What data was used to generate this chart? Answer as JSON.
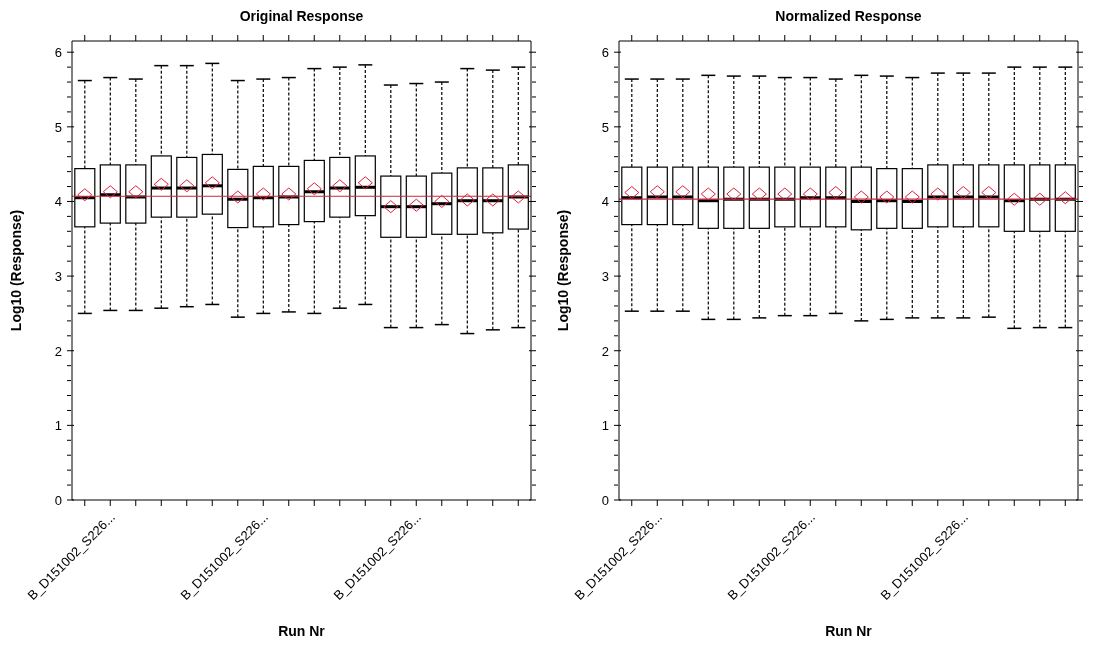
{
  "chart_data": [
    {
      "type": "box",
      "title": "Original Response",
      "xlabel": "Run Nr",
      "ylabel": "Log10 (Response)",
      "categories": [
        null,
        "B_D151002_S226...",
        null,
        null,
        null,
        null,
        null,
        "B_D151002_S226...",
        null,
        null,
        null,
        null,
        null,
        "B_D151002_S226...",
        null,
        null,
        null,
        null
      ],
      "ylim": [
        0,
        6.15
      ],
      "yticks": [
        0,
        {
          "value": 0.2,
          "label": null
        },
        {
          "value": 0.4,
          "label": null
        },
        {
          "value": 0.6,
          "label": null
        },
        {
          "value": 0.8,
          "label": null
        },
        1,
        {
          "value": 1.2,
          "label": null
        },
        {
          "value": 1.4,
          "label": null
        },
        {
          "value": 1.6,
          "label": null
        },
        {
          "value": 1.8,
          "label": null
        },
        2,
        {
          "value": 2.2,
          "label": null
        },
        {
          "value": 2.4,
          "label": null
        },
        {
          "value": 2.6,
          "label": null
        },
        {
          "value": 2.8,
          "label": null
        },
        3,
        {
          "value": 3.2,
          "label": null
        },
        {
          "value": 3.4,
          "label": null
        },
        {
          "value": 3.6,
          "label": null
        },
        {
          "value": 3.8,
          "label": null
        },
        4,
        {
          "value": 4.2,
          "label": null
        },
        {
          "value": 4.4,
          "label": null
        },
        {
          "value": 4.6,
          "label": null
        },
        {
          "value": 4.8,
          "label": null
        },
        5,
        {
          "value": 5.2,
          "label": null
        },
        {
          "value": 5.4,
          "label": null
        },
        {
          "value": 5.6,
          "label": null
        },
        {
          "value": 5.8,
          "label": null
        },
        6
      ],
      "ref_lines": [
        {
          "axis": "y",
          "value": 4.07,
          "color": "#c8283c"
        }
      ],
      "series": [
        {
          "color": "#000000",
          "boxes": [
            {
              "low": 2.5,
              "q1": 3.66,
              "median": 4.05,
              "q3": 4.44,
              "high": 5.62,
              "mean": 4.09
            },
            {
              "low": 2.54,
              "q1": 3.71,
              "median": 4.09,
              "q3": 4.49,
              "high": 5.66,
              "mean": 4.13
            },
            {
              "low": 2.54,
              "q1": 3.71,
              "median": 4.06,
              "q3": 4.49,
              "high": 5.64,
              "mean": 4.13
            },
            {
              "low": 2.57,
              "q1": 3.79,
              "median": 4.18,
              "q3": 4.61,
              "high": 5.82,
              "mean": 4.23
            },
            {
              "low": 2.59,
              "q1": 3.79,
              "median": 4.18,
              "q3": 4.59,
              "high": 5.82,
              "mean": 4.21
            },
            {
              "low": 2.62,
              "q1": 3.83,
              "median": 4.21,
              "q3": 4.63,
              "high": 5.85,
              "mean": 4.25
            },
            {
              "low": 2.45,
              "q1": 3.65,
              "median": 4.03,
              "q3": 4.43,
              "high": 5.62,
              "mean": 4.06
            },
            {
              "low": 2.5,
              "q1": 3.66,
              "median": 4.05,
              "q3": 4.47,
              "high": 5.64,
              "mean": 4.1
            },
            {
              "low": 2.52,
              "q1": 3.69,
              "median": 4.06,
              "q3": 4.47,
              "high": 5.66,
              "mean": 4.1
            },
            {
              "low": 2.5,
              "q1": 3.73,
              "median": 4.13,
              "q3": 4.55,
              "high": 5.78,
              "mean": 4.17
            },
            {
              "low": 2.57,
              "q1": 3.79,
              "median": 4.18,
              "q3": 4.59,
              "high": 5.8,
              "mean": 4.21
            },
            {
              "low": 2.62,
              "q1": 3.81,
              "median": 4.19,
              "q3": 4.61,
              "high": 5.83,
              "mean": 4.25
            },
            {
              "low": 2.31,
              "q1": 3.52,
              "median": 3.93,
              "q3": 4.34,
              "high": 5.56,
              "mean": 3.93
            },
            {
              "low": 2.31,
              "q1": 3.52,
              "median": 3.93,
              "q3": 4.34,
              "high": 5.58,
              "mean": 3.95
            },
            {
              "low": 2.35,
              "q1": 3.56,
              "median": 3.97,
              "q3": 4.38,
              "high": 5.6,
              "mean": 4.0
            },
            {
              "low": 2.23,
              "q1": 3.56,
              "median": 4.01,
              "q3": 4.45,
              "high": 5.78,
              "mean": 4.02
            },
            {
              "low": 2.28,
              "q1": 3.58,
              "median": 4.01,
              "q3": 4.45,
              "high": 5.76,
              "mean": 4.02
            },
            {
              "low": 2.31,
              "q1": 3.63,
              "median": 4.06,
              "q3": 4.49,
              "high": 5.8,
              "mean": 4.06
            }
          ]
        }
      ]
    },
    {
      "type": "box",
      "title": "Normalized Response",
      "xlabel": "Run Nr",
      "ylabel": "Log10 (Response)",
      "categories": [
        null,
        "B_D151002_S226...",
        null,
        null,
        null,
        null,
        null,
        "B_D151002_S226...",
        null,
        null,
        null,
        null,
        null,
        "B_D151002_S226...",
        null,
        null,
        null,
        null
      ],
      "ylim": [
        0,
        6.15
      ],
      "yticks": [
        0,
        {
          "value": 0.2,
          "label": null
        },
        {
          "value": 0.4,
          "label": null
        },
        {
          "value": 0.6,
          "label": null
        },
        {
          "value": 0.8,
          "label": null
        },
        1,
        {
          "value": 1.2,
          "label": null
        },
        {
          "value": 1.4,
          "label": null
        },
        {
          "value": 1.6,
          "label": null
        },
        {
          "value": 1.8,
          "label": null
        },
        2,
        {
          "value": 2.2,
          "label": null
        },
        {
          "value": 2.4,
          "label": null
        },
        {
          "value": 2.6,
          "label": null
        },
        {
          "value": 2.8,
          "label": null
        },
        3,
        {
          "value": 3.2,
          "label": null
        },
        {
          "value": 3.4,
          "label": null
        },
        {
          "value": 3.6,
          "label": null
        },
        {
          "value": 3.8,
          "label": null
        },
        4,
        {
          "value": 4.2,
          "label": null
        },
        {
          "value": 4.4,
          "label": null
        },
        {
          "value": 4.6,
          "label": null
        },
        {
          "value": 4.8,
          "label": null
        },
        5,
        {
          "value": 5.2,
          "label": null
        },
        {
          "value": 5.4,
          "label": null
        },
        {
          "value": 5.6,
          "label": null
        },
        {
          "value": 5.8,
          "label": null
        },
        6
      ],
      "ref_lines": [
        {
          "axis": "y",
          "value": 4.03,
          "color": "#c8283c"
        }
      ],
      "series": [
        {
          "color": "#000000",
          "boxes": [
            {
              "low": 2.53,
              "q1": 3.69,
              "median": 4.05,
              "q3": 4.46,
              "high": 5.64,
              "mean": 4.12
            },
            {
              "low": 2.53,
              "q1": 3.69,
              "median": 4.06,
              "q3": 4.46,
              "high": 5.64,
              "mean": 4.13
            },
            {
              "low": 2.53,
              "q1": 3.69,
              "median": 4.06,
              "q3": 4.46,
              "high": 5.64,
              "mean": 4.13
            },
            {
              "low": 2.42,
              "q1": 3.64,
              "median": 4.01,
              "q3": 4.46,
              "high": 5.69,
              "mean": 4.1
            },
            {
              "low": 2.42,
              "q1": 3.64,
              "median": 4.03,
              "q3": 4.46,
              "high": 5.68,
              "mean": 4.1
            },
            {
              "low": 2.44,
              "q1": 3.64,
              "median": 4.03,
              "q3": 4.46,
              "high": 5.68,
              "mean": 4.1
            },
            {
              "low": 2.47,
              "q1": 3.66,
              "median": 4.03,
              "q3": 4.46,
              "high": 5.66,
              "mean": 4.1
            },
            {
              "low": 2.47,
              "q1": 3.66,
              "median": 4.05,
              "q3": 4.46,
              "high": 5.66,
              "mean": 4.1
            },
            {
              "low": 2.5,
              "q1": 3.66,
              "median": 4.05,
              "q3": 4.46,
              "high": 5.64,
              "mean": 4.12
            },
            {
              "low": 2.4,
              "q1": 3.62,
              "median": 4.0,
              "q3": 4.46,
              "high": 5.69,
              "mean": 4.06
            },
            {
              "low": 2.42,
              "q1": 3.64,
              "median": 4.01,
              "q3": 4.44,
              "high": 5.68,
              "mean": 4.06
            },
            {
              "low": 2.44,
              "q1": 3.64,
              "median": 4.0,
              "q3": 4.44,
              "high": 5.66,
              "mean": 4.06
            },
            {
              "low": 2.44,
              "q1": 3.66,
              "median": 4.06,
              "q3": 4.49,
              "high": 5.72,
              "mean": 4.1
            },
            {
              "low": 2.44,
              "q1": 3.66,
              "median": 4.06,
              "q3": 4.49,
              "high": 5.72,
              "mean": 4.12
            },
            {
              "low": 2.45,
              "q1": 3.66,
              "median": 4.06,
              "q3": 4.49,
              "high": 5.72,
              "mean": 4.12
            },
            {
              "low": 2.3,
              "q1": 3.6,
              "median": 4.01,
              "q3": 4.49,
              "high": 5.8,
              "mean": 4.03
            },
            {
              "low": 2.31,
              "q1": 3.6,
              "median": 4.03,
              "q3": 4.49,
              "high": 5.8,
              "mean": 4.03
            },
            {
              "low": 2.31,
              "q1": 3.6,
              "median": 4.03,
              "q3": 4.49,
              "high": 5.8,
              "mean": 4.05
            }
          ]
        }
      ]
    }
  ]
}
